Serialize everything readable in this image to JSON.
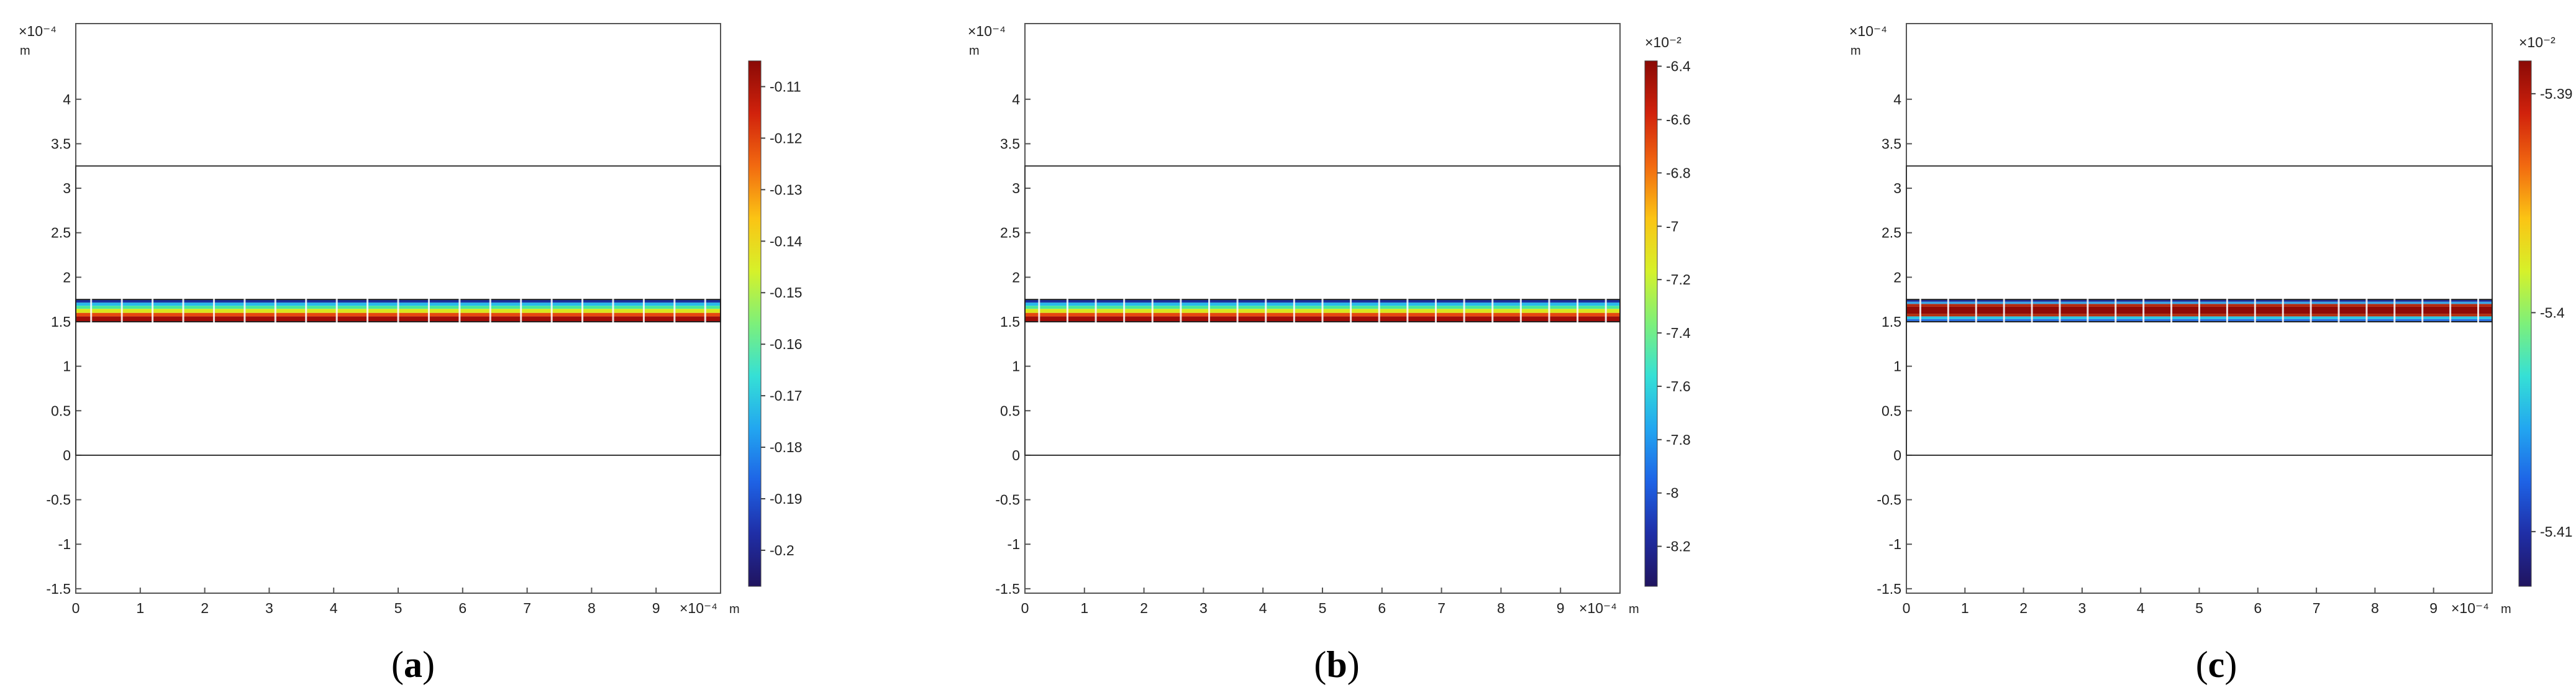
{
  "chart_data": [
    {
      "type": "heatmap",
      "caption": "a",
      "axis_exponent_x": "×10⁻⁴",
      "axis_exponent_y": "×10⁻⁴",
      "x_unit": "m",
      "y_unit": "m",
      "x_ticks": [
        "0",
        "1",
        "2",
        "3",
        "4",
        "5",
        "6",
        "7",
        "8",
        "9"
      ],
      "y_ticks": [
        "4",
        "3.5",
        "3",
        "2.5",
        "2",
        "1.5",
        "1",
        "0.5",
        "0",
        "-0.5",
        "-1",
        "-1.5"
      ],
      "xlim": [
        0,
        10
      ],
      "ylim": [
        -1.55,
        4.85
      ],
      "domain_rect": {
        "x": [
          0,
          10
        ],
        "y": [
          0,
          3.25
        ]
      },
      "layer": {
        "x": [
          0,
          10
        ],
        "y": [
          1.5,
          1.75
        ]
      },
      "layer_bands": [
        {
          "y": [
            1.5,
            1.56
          ],
          "color": "#a00d08"
        },
        {
          "y": [
            1.56,
            1.6
          ],
          "color": "#e5480f"
        },
        {
          "y": [
            1.6,
            1.645
          ],
          "color": "#d9e61d"
        },
        {
          "y": [
            1.645,
            1.68
          ],
          "color": "#4ce89a"
        },
        {
          "y": [
            1.68,
            1.715
          ],
          "color": "#27b9eb"
        },
        {
          "y": [
            1.715,
            1.75
          ],
          "color": "#1d2e9e"
        }
      ],
      "colorbar": {
        "exponent": "",
        "ticks": [
          "-0.11",
          "-0.12",
          "-0.13",
          "-0.14",
          "-0.15",
          "-0.16",
          "-0.17",
          "-0.18",
          "-0.19",
          "-0.2"
        ],
        "tick_values": [
          -0.11,
          -0.12,
          -0.13,
          -0.14,
          -0.15,
          -0.16,
          -0.17,
          -0.18,
          -0.19,
          -0.2
        ],
        "range": [
          -0.207,
          -0.105
        ]
      }
    },
    {
      "type": "heatmap",
      "caption": "b",
      "axis_exponent_x": "×10⁻⁴",
      "axis_exponent_y": "×10⁻⁴",
      "x_unit": "m",
      "y_unit": "m",
      "x_ticks": [
        "0",
        "1",
        "2",
        "3",
        "4",
        "5",
        "6",
        "7",
        "8",
        "9"
      ],
      "y_ticks": [
        "4",
        "3.5",
        "3",
        "2.5",
        "2",
        "1.5",
        "1",
        "0.5",
        "0",
        "-0.5",
        "-1",
        "-1.5"
      ],
      "xlim": [
        0,
        10
      ],
      "ylim": [
        -1.55,
        4.85
      ],
      "domain_rect": {
        "x": [
          0,
          10
        ],
        "y": [
          0,
          3.25
        ]
      },
      "layer": {
        "x": [
          0,
          10
        ],
        "y": [
          1.5,
          1.75
        ]
      },
      "layer_bands": [
        {
          "y": [
            1.5,
            1.56
          ],
          "color": "#a00d08"
        },
        {
          "y": [
            1.56,
            1.6
          ],
          "color": "#e5480f"
        },
        {
          "y": [
            1.6,
            1.645
          ],
          "color": "#d9e61d"
        },
        {
          "y": [
            1.645,
            1.68
          ],
          "color": "#4ce89a"
        },
        {
          "y": [
            1.68,
            1.715
          ],
          "color": "#27b9eb"
        },
        {
          "y": [
            1.715,
            1.75
          ],
          "color": "#1d2e9e"
        }
      ],
      "colorbar": {
        "exponent": "×10⁻²",
        "ticks": [
          "-6.4",
          "-6.6",
          "-6.8",
          "-7",
          "-7.2",
          "-7.4",
          "-7.6",
          "-7.8",
          "-8",
          "-8.2"
        ],
        "tick_values": [
          -6.4,
          -6.6,
          -6.8,
          -7.0,
          -7.2,
          -7.4,
          -7.6,
          -7.8,
          -8.0,
          -8.2
        ],
        "range": [
          -8.35,
          -6.38
        ]
      }
    },
    {
      "type": "heatmap",
      "caption": "c",
      "axis_exponent_x": "×10⁻⁴",
      "axis_exponent_y": "×10⁻⁴",
      "x_unit": "m",
      "y_unit": "m",
      "x_ticks": [
        "0",
        "1",
        "2",
        "3",
        "4",
        "5",
        "6",
        "7",
        "8",
        "9"
      ],
      "y_ticks": [
        "4",
        "3.5",
        "3",
        "2.5",
        "2",
        "1.5",
        "1",
        "0.5",
        "0",
        "-0.5",
        "-1",
        "-1.5"
      ],
      "xlim": [
        0,
        10
      ],
      "ylim": [
        -1.55,
        4.85
      ],
      "domain_rect": {
        "x": [
          0,
          10
        ],
        "y": [
          0,
          3.25
        ]
      },
      "layer": {
        "x": [
          0,
          10
        ],
        "y": [
          1.5,
          1.75
        ]
      },
      "layer_bands": [
        {
          "y": [
            1.5,
            1.53
          ],
          "color": "#2a6fe0"
        },
        {
          "y": [
            1.53,
            1.56
          ],
          "color": "#2bc6e6"
        },
        {
          "y": [
            1.56,
            1.59
          ],
          "color": "#b23010"
        },
        {
          "y": [
            1.59,
            1.67
          ],
          "color": "#8f0a06"
        },
        {
          "y": [
            1.67,
            1.7
          ],
          "color": "#b42a10"
        },
        {
          "y": [
            1.7,
            1.725
          ],
          "color": "#3aa3e3"
        },
        {
          "y": [
            1.725,
            1.75
          ],
          "color": "#1d2e9e"
        }
      ],
      "colorbar": {
        "exponent": "×10⁻²",
        "ticks": [
          "-5.39",
          "-5.4",
          "-5.41"
        ],
        "tick_values": [
          -5.39,
          -5.4,
          -5.41
        ],
        "range": [
          -5.4125,
          -5.3885
        ]
      }
    }
  ]
}
